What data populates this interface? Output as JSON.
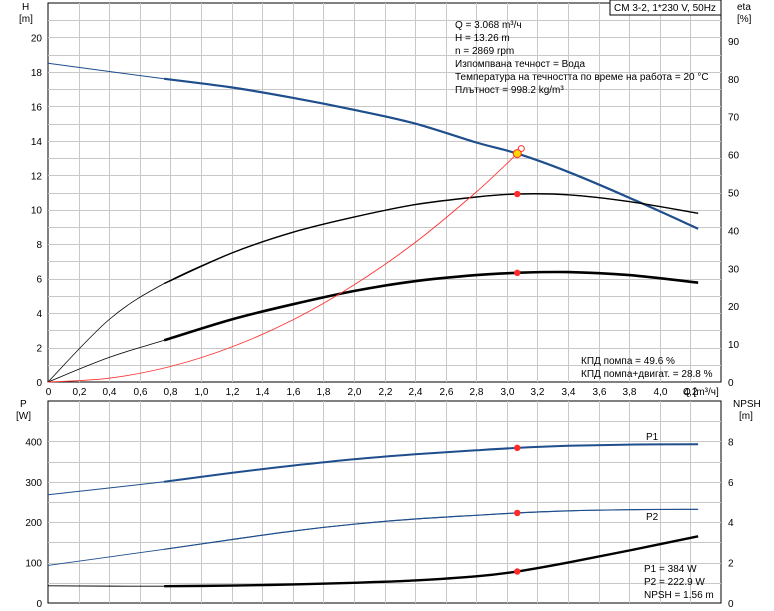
{
  "title_box": "CM 3-2, 1*230 V, 50Hz",
  "top_info": [
    "Q = 3.068 m³/ч",
    "H = 13.26 m",
    "n = 2869 rpm",
    "Изпомпвана течност = Вода",
    "Температура на течността по време на работа = 20 °C",
    "Плътност = 998.2 kg/m³"
  ],
  "eff_info": [
    "КПД помпа = 49.6 %",
    "КПД помпа+двигат. = 28.8 %"
  ],
  "bottom_info": [
    "P1 = 384 W",
    "P2 = 222.9 W",
    "NPSH = 1.56 m"
  ],
  "colors": {
    "head": "#1f4e8c",
    "power": "#1f4e8c",
    "system": "#ff3333",
    "eff": "#000000",
    "npsh": "#000000",
    "op_point": "#ff2a2a",
    "op_fill": "#ffd700"
  },
  "chart_data": [
    {
      "type": "line",
      "x_axis": {
        "label": "Q [m³/ч]",
        "ticks": [
          "0",
          "0,2",
          "0,4",
          "0,6",
          "0,8",
          "1,0",
          "1,2",
          "1,4",
          "1,6",
          "1,8",
          "2,0",
          "2,2",
          "2,4",
          "2,6",
          "2,8",
          "3,0",
          "3,2",
          "3,4",
          "3,6",
          "3,8",
          "4,0",
          "4,2"
        ],
        "range": [
          0,
          4.4
        ]
      },
      "y_axis_left": {
        "label": [
          "H",
          "[m]"
        ],
        "ticks": [
          "0",
          "2",
          "4",
          "6",
          "8",
          "10",
          "12",
          "14",
          "16",
          "18",
          "20"
        ],
        "range": [
          0,
          22
        ]
      },
      "y_axis_right": {
        "label": [
          "eta",
          "[%]"
        ],
        "ticks": [
          "0",
          "10",
          "20",
          "30",
          "40",
          "50",
          "60",
          "70",
          "80",
          "90"
        ],
        "range": [
          0,
          100
        ]
      },
      "grid": true,
      "series": [
        {
          "name": "H",
          "axis": "left",
          "x": [
            0,
            0.76,
            1.2,
            1.6,
            2.0,
            2.4,
            2.8,
            3.068,
            3.4,
            3.8,
            4.25
          ],
          "y": [
            18.5,
            17.6,
            17.1,
            16.5,
            15.8,
            15.0,
            13.9,
            13.26,
            12.2,
            10.7,
            8.9
          ]
        },
        {
          "name": "eta pump",
          "axis": "right",
          "x": [
            0,
            0.4,
            0.76,
            1.2,
            1.6,
            2.0,
            2.4,
            2.8,
            3.068,
            3.4,
            3.8,
            4.25
          ],
          "y": [
            0,
            16.5,
            26,
            34,
            39.5,
            43.5,
            46.8,
            48.8,
            49.6,
            49.4,
            47.6,
            44.5
          ]
        },
        {
          "name": "eta pump+motor",
          "axis": "right",
          "x": [
            0,
            0.4,
            0.76,
            1.2,
            1.6,
            2.0,
            2.4,
            2.8,
            3.068,
            3.4,
            3.8,
            4.25
          ],
          "y": [
            0,
            6.5,
            11,
            16.5,
            20.5,
            24,
            26.6,
            28.2,
            28.8,
            29,
            28.2,
            26.2
          ]
        },
        {
          "name": "system",
          "axis": "left",
          "x": [
            0,
            0.4,
            0.8,
            1.2,
            1.6,
            2.0,
            2.4,
            2.8,
            3.068
          ],
          "y": [
            0,
            0.22,
            0.9,
            2.03,
            3.6,
            5.63,
            8.1,
            11.03,
            13.26
          ]
        }
      ],
      "operating_point": {
        "Q": 3.068,
        "H": 13.26,
        "eta_pump": 49.6,
        "eta_total": 28.8
      }
    },
    {
      "type": "line",
      "x_axis": {
        "range": [
          0,
          4.4
        ]
      },
      "y_axis_left": {
        "label": [
          "P",
          "[W]"
        ],
        "ticks": [
          "0",
          "100",
          "200",
          "300",
          "400"
        ],
        "range": [
          0,
          500
        ]
      },
      "y_axis_right": {
        "label": [
          "NPSH",
          "[m]"
        ],
        "ticks": [
          "0",
          "2",
          "4",
          "6",
          "8"
        ],
        "range": [
          0,
          10
        ]
      },
      "grid": true,
      "series": [
        {
          "name": "P1",
          "axis": "left",
          "x": [
            0,
            0.76,
            1.2,
            1.6,
            2.0,
            2.4,
            2.8,
            3.068,
            3.4,
            3.8,
            4.25
          ],
          "y": [
            268,
            300,
            322,
            340,
            356,
            368,
            378,
            384,
            389,
            392,
            393
          ]
        },
        {
          "name": "P2",
          "axis": "left",
          "x": [
            0,
            0.76,
            1.2,
            1.6,
            2.0,
            2.4,
            2.8,
            3.068,
            3.4,
            3.8,
            4.25
          ],
          "y": [
            93,
            133,
            157,
            178,
            195,
            208,
            217,
            222.9,
            228,
            231,
            232
          ]
        },
        {
          "name": "NPSH",
          "axis": "right",
          "x": [
            0,
            0.76,
            1.2,
            1.6,
            2.0,
            2.4,
            2.8,
            3.068,
            3.4,
            3.8,
            4.25
          ],
          "y": [
            0.85,
            0.83,
            0.86,
            0.92,
            1.0,
            1.12,
            1.32,
            1.56,
            2.0,
            2.6,
            3.3
          ]
        }
      ],
      "operating_point": {
        "P1": 384,
        "P2": 222.9,
        "NPSH": 1.56
      }
    }
  ]
}
